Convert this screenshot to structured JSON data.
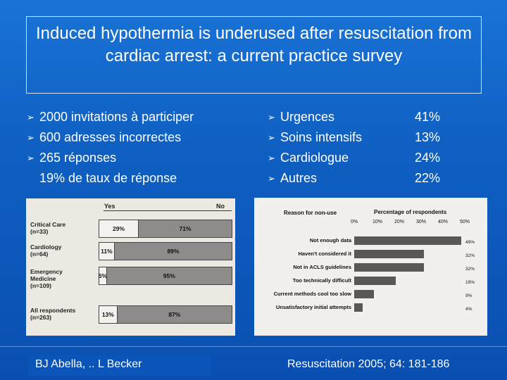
{
  "slide": {
    "title": "Induced hypothermia is underused after resuscitation from cardiac arrest: a current practice survey",
    "left_bullets": [
      {
        "text": "2000 invitations à participer",
        "marker": true
      },
      {
        "text": "600 adresses incorrectes",
        "marker": true
      },
      {
        "text": "265 réponses",
        "marker": true
      },
      {
        "text": "19% de taux de réponse",
        "marker": false
      }
    ],
    "right_bullets": [
      {
        "text": "Urgences",
        "pct": "41%"
      },
      {
        "text": "Soins intensifs",
        "pct": "13%"
      },
      {
        "text": "Cardiologue",
        "pct": "24%"
      },
      {
        "text": "Autres",
        "pct": "22%"
      }
    ],
    "arrow_icon": "arrow-bullet-icon",
    "footer_left": "BJ Abella, .. L Becker",
    "footer_right": "Resuscitation 2005; 64: 181-186"
  },
  "chart_data": [
    {
      "type": "bar",
      "headers": [
        "Yes",
        "No"
      ],
      "categories": [
        "Critical Care (n=33)",
        "Cardiology (n=64)",
        "Emergency Medicine (n=109)",
        "All respondents (n=263)"
      ],
      "category_lines": [
        [
          "Critical Care",
          "(n=33)"
        ],
        [
          "Cardiology",
          "(n=64)"
        ],
        [
          "Emergency",
          "Medicine",
          "(n=109)"
        ],
        [
          "All respondents",
          "(n=263)"
        ]
      ],
      "series": [
        {
          "name": "Yes",
          "values": [
            29,
            11,
            5,
            13
          ],
          "labels": [
            "29%",
            "11%",
            "5%",
            "13%"
          ]
        },
        {
          "name": "No",
          "values": [
            71,
            89,
            95,
            87
          ],
          "labels": [
            "71%",
            "89%",
            "95%",
            "87%"
          ]
        }
      ]
    },
    {
      "type": "bar",
      "title_left": "Reason for non-use",
      "title_right": "Percentage of respondents",
      "x_ticks": [
        "0%",
        "10%",
        "20%",
        "30%",
        "40%",
        "50%"
      ],
      "xlim": [
        0,
        50
      ],
      "categories": [
        "Not enough data",
        "Haven't considered it",
        "Not in ACLS guidelines",
        "Too technically difficult",
        "Current methods cool too slow",
        "Unsatisfactory initial attempts"
      ],
      "values": [
        49,
        32,
        32,
        19,
        9,
        4
      ],
      "labels": [
        "49%",
        "32%",
        "32%",
        "19%",
        "9%",
        "4%"
      ]
    }
  ]
}
